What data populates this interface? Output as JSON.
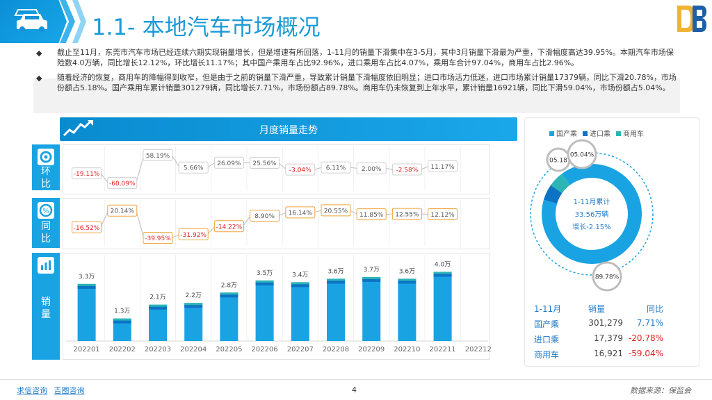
{
  "header": {
    "title": "1.1- 本地汽车市场概况"
  },
  "bullets": [
    "截止至11月，东莞市汽车市场已经连续六期实现销量增长，但是增速有所回落，1-11月的销量下滑集中在3-5月，其中3月销量下滑最为严重，下滑幅度高达39.95%。本期汽车市场保险数4.0万辆，同比增长12.12%，环比增长11.17%；其中国产乘用车占比92.96%，进口乘用车占比4.07%，乘用车合计97.04%，商用车占比2.96%。",
    "随着经济的恢复，商用车的降幅得到收窄，但是由于之前的销量下滑严重，导致累计销量下滑幅度依旧明显；进口市场活力低迷，进口市场累计销量17379辆，同比下滑20.78%，市场份额占5.18%。国产乘用车累计销量301279辆，同比增长7.71%，市场份额占89.78%。商用车仍未恢复到上年水平，累计销量16921辆，同比下滑59.04%，市场份额占5.04%。"
  ],
  "chart_head": {
    "title": "月度销量走势"
  },
  "side_labels": {
    "mom": "环\n比",
    "yoy": "同\n比",
    "sales": "销\n量"
  },
  "colors": {
    "primary": "#1aa3e3",
    "dark": "#0d73c4",
    "teal": "#2cb5b5",
    "neg": "#e02020",
    "pos": "#1e78c8"
  },
  "chart_data": {
    "type": "bar",
    "categories": [
      "202201",
      "202202",
      "202203",
      "202204",
      "202205",
      "202206",
      "202207",
      "202208",
      "202209",
      "202210",
      "202211",
      "202212"
    ],
    "sales_labels": [
      "3.3万",
      "1.3万",
      "2.1万",
      "2.2万",
      "2.8万",
      "3.5万",
      "3.4万",
      "3.6万",
      "3.7万",
      "3.6万",
      "4.0万",
      ""
    ],
    "sales_values": [
      3.3,
      1.3,
      2.1,
      2.2,
      2.8,
      3.5,
      3.4,
      3.6,
      3.7,
      3.6,
      4.0,
      null
    ],
    "mom_labels": [
      "-19.11%",
      "-60.09%",
      "58.19%",
      "5.66%",
      "26.09%",
      "25.56%",
      "-3.04%",
      "6.11%",
      "2.00%",
      "-2.58%",
      "11.17%"
    ],
    "mom_values": [
      -19.11,
      -60.09,
      58.19,
      5.66,
      26.09,
      25.56,
      -3.04,
      6.11,
      2.0,
      -2.58,
      11.17
    ],
    "yoy_labels": [
      "-16.52%",
      "20.14%",
      "-39.95%",
      "-31.92%",
      "-14.22%",
      "8.90%",
      "16.14%",
      "20.55%",
      "11.85%",
      "12.55%",
      "12.12%"
    ],
    "yoy_values": [
      -16.52,
      20.14,
      -39.95,
      -31.92,
      -14.22,
      8.9,
      16.14,
      20.55,
      11.85,
      12.55,
      12.12
    ],
    "donut": {
      "legend": [
        "国产乘",
        "进口乘",
        "商用车"
      ],
      "values": [
        89.78,
        5.18,
        5.04
      ],
      "labels": [
        "89.78%",
        "05.18",
        "05.04%"
      ],
      "center": [
        "1-11月累计",
        "33.56万辆",
        "增长-2.15%"
      ]
    }
  },
  "table": {
    "headers": [
      "1-11月",
      "销量",
      "同比"
    ],
    "rows": [
      {
        "name": "国产乘",
        "sales": "301,279",
        "yoy": "7.71%",
        "sign": "pos"
      },
      {
        "name": "进口乘",
        "sales": "17,379",
        "yoy": "-20.78%",
        "sign": "neg"
      },
      {
        "name": "商用车",
        "sales": "16,921",
        "yoy": "-59.04%",
        "sign": "neg"
      }
    ]
  },
  "footer": {
    "link1": "求信咨询",
    "link2": "吉图咨询",
    "page": "4",
    "source": "数据来源：保监会"
  }
}
